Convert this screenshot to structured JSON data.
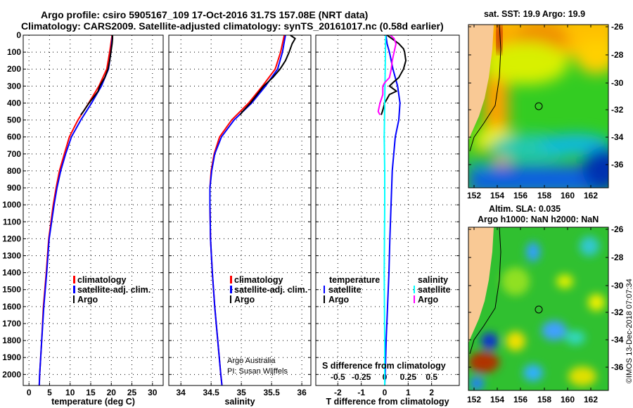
{
  "title_line1": "Argo profile: csiro 5905167_109 17-Oct-2016 31.7S 157.08E (NRT data)",
  "title_line2": "Climatology: CARS2009. Satellite-adjusted climatology: synTS_20161017.nc (0.58d earlier)",
  "credit": "Argo Australia",
  "pi": "PI: Susan Wijffels",
  "copyright": "©IMOS 13-Dec-2018 07:07:34",
  "colors": {
    "climatology": "#ff0000",
    "satellite": "#0000ff",
    "argo": "#000000",
    "sal_satellite": "#00ffff",
    "sal_argo": "#ff00ff"
  },
  "chart_data": [
    {
      "type": "line",
      "name": "temperature-profile",
      "xlabel": "temperature (deg C)",
      "ylabel": "",
      "xlim": [
        -1.4,
        32.6
      ],
      "ylim": [
        0,
        2065
      ],
      "xticks": [
        0,
        5,
        10,
        15,
        20,
        25,
        30
      ],
      "yticks": [
        0,
        100,
        200,
        300,
        400,
        500,
        600,
        700,
        800,
        900,
        1000,
        1100,
        1200,
        1300,
        1400,
        1500,
        1600,
        1700,
        1800,
        1900,
        2000
      ],
      "grid": true,
      "legend": {
        "position": "lower-center",
        "entries": [
          "climatology",
          "satellite-adj. clim.",
          "Argo"
        ]
      },
      "series": [
        {
          "name": "climatology",
          "color": "#ff0000",
          "depth": [
            0,
            100,
            200,
            300,
            400,
            500,
            600,
            700,
            800,
            900,
            1000,
            1200,
            1400,
            1600,
            1800,
            2000,
            2065
          ],
          "values": [
            20.2,
            19.6,
            18.9,
            17.0,
            14.5,
            11.9,
            9.8,
            8.6,
            7.4,
            6.6,
            5.9,
            4.8,
            4.2,
            3.5,
            3.1,
            2.6,
            2.5
          ]
        },
        {
          "name": "satellite-adj. clim.",
          "color": "#0000ff",
          "depth": [
            0,
            100,
            200,
            300,
            400,
            500,
            600,
            700,
            800,
            900,
            1000,
            1200,
            1400,
            1600,
            1800,
            2000,
            2065
          ],
          "values": [
            20.3,
            19.9,
            19.3,
            17.6,
            15.2,
            12.6,
            10.3,
            8.9,
            7.7,
            6.8,
            6.1,
            4.9,
            4.3,
            3.6,
            3.1,
            2.6,
            2.5
          ]
        },
        {
          "name": "Argo",
          "color": "#000000",
          "depth": [
            0,
            20,
            50,
            100,
            150,
            200,
            250,
            300,
            330,
            350,
            400,
            450,
            470
          ],
          "values": [
            20.3,
            20.3,
            20.2,
            19.9,
            19.6,
            19.2,
            18.4,
            17.2,
            16.8,
            16.2,
            14.6,
            13.2,
            12.6
          ]
        }
      ]
    },
    {
      "type": "line",
      "name": "salinity-profile",
      "xlabel": "salinity",
      "xlim": [
        33.8,
        36.15
      ],
      "ylim": [
        0,
        2065
      ],
      "xticks": [
        34,
        34.5,
        35,
        35.5,
        36
      ],
      "yticks": [
        0,
        100,
        200,
        300,
        400,
        500,
        600,
        700,
        800,
        900,
        1000,
        1100,
        1200,
        1300,
        1400,
        1500,
        1600,
        1700,
        1800,
        1900,
        2000
      ],
      "grid": true,
      "legend": {
        "position": "lower-center",
        "entries": [
          "climatology",
          "satellite-adj. clim.",
          "Argo"
        ]
      },
      "series": [
        {
          "name": "climatology",
          "color": "#ff0000",
          "depth": [
            0,
            100,
            200,
            300,
            400,
            500,
            600,
            700,
            800,
            900,
            1000,
            1200,
            1400,
            1600,
            1800,
            2000,
            2065
          ],
          "values": [
            35.71,
            35.65,
            35.56,
            35.35,
            35.12,
            34.84,
            34.64,
            34.55,
            34.5,
            34.48,
            34.48,
            34.49,
            34.52,
            34.56,
            34.61,
            34.66,
            34.68
          ]
        },
        {
          "name": "satellite-adj. clim.",
          "color": "#0000ff",
          "depth": [
            0,
            100,
            200,
            300,
            400,
            500,
            600,
            700,
            800,
            900,
            1000,
            1200,
            1400,
            1600,
            1800,
            2000,
            2065
          ],
          "values": [
            35.73,
            35.68,
            35.6,
            35.4,
            35.17,
            34.88,
            34.67,
            34.56,
            34.51,
            34.48,
            34.48,
            34.49,
            34.52,
            34.56,
            34.61,
            34.66,
            34.68
          ]
        },
        {
          "name": "Argo",
          "color": "#000000",
          "depth": [
            0,
            20,
            50,
            100,
            150,
            200,
            250,
            300,
            350,
            400,
            450,
            470
          ],
          "values": [
            35.81,
            35.89,
            35.84,
            35.79,
            35.73,
            35.64,
            35.52,
            35.37,
            35.26,
            35.15,
            35.02,
            34.98
          ]
        }
      ]
    },
    {
      "type": "line",
      "name": "difference-profile",
      "xlabel": "T difference from climatology",
      "x2label": "S difference from climatology",
      "xlim": [
        -2.94,
        3.18
      ],
      "x2lim": [
        -0.735,
        0.795
      ],
      "ylim": [
        0,
        2065
      ],
      "xticks": [
        -2,
        -1,
        0,
        1,
        2
      ],
      "x2ticks": [
        -0.5,
        -0.25,
        0,
        0.25,
        0.5
      ],
      "x2ticklabels": [
        "-0.5",
        "-0.25",
        "0",
        "0.25",
        "0.5"
      ],
      "yticks": [
        0,
        100,
        200,
        300,
        400,
        500,
        600,
        700,
        800,
        900,
        1000,
        1100,
        1200,
        1300,
        1400,
        1500,
        1600,
        1700,
        1800,
        1900,
        2000
      ],
      "grid": true,
      "legend": {
        "position": "lower-center",
        "temperature_header": "temperature",
        "salinity_header": "salinity",
        "entries": [
          "satellite",
          "Argo",
          "satellite",
          "Argo"
        ]
      },
      "series": [
        {
          "name": "temperature satellite",
          "axis": "T",
          "color": "#0000ff",
          "depth": [
            0,
            50,
            100,
            200,
            300,
            400,
            500,
            600,
            800,
            1000,
            1200,
            1400,
            1600,
            1800,
            2000,
            2065
          ],
          "values": [
            0.05,
            0.1,
            0.2,
            0.35,
            0.55,
            0.65,
            0.6,
            0.45,
            0.32,
            0.27,
            0.22,
            0.18,
            0.12,
            0.06,
            0.02,
            0.0
          ]
        },
        {
          "name": "temperature Argo",
          "axis": "T",
          "color": "#000000",
          "depth": [
            0,
            20,
            50,
            80,
            100,
            150,
            200,
            250,
            280,
            300,
            330,
            350,
            400,
            450,
            470
          ],
          "values": [
            0.1,
            0.3,
            0.6,
            0.8,
            0.85,
            0.9,
            0.8,
            0.6,
            0.35,
            0.2,
            0.5,
            0.2,
            0.0,
            -0.1,
            -0.15
          ]
        },
        {
          "name": "salinity satellite",
          "axis": "S",
          "color": "#00ffff",
          "depth": [
            0,
            200,
            400,
            600,
            800,
            1000,
            1400,
            1800,
            2065
          ],
          "values": [
            0.01,
            0.005,
            0.0,
            -0.005,
            0.0,
            0.0,
            -0.005,
            0.0,
            0.0
          ]
        },
        {
          "name": "salinity Argo",
          "axis": "S",
          "color": "#ff00ff",
          "depth": [
            0,
            20,
            50,
            100,
            150,
            200,
            250,
            280,
            300,
            350,
            400,
            450,
            470
          ],
          "values": [
            0.06,
            0.1,
            0.12,
            0.1,
            0.08,
            0.07,
            0.05,
            0.0,
            -0.02,
            -0.02,
            -0.05,
            -0.07,
            -0.05
          ]
        }
      ]
    }
  ],
  "maps": [
    {
      "name": "sst-map",
      "title": "sat. SST: 19.9 Argo: 19.9",
      "lon_ticks": [
        "152",
        "154",
        "156",
        "158",
        "160",
        "162"
      ],
      "lat_ticks": [
        "-26",
        "-28",
        "-30",
        "-32",
        "-34",
        "-36"
      ],
      "argo_position": {
        "lat": -31.7,
        "lon": 157.08
      }
    },
    {
      "name": "sla-map",
      "title1": "Altim. SLA: 0.035",
      "title2": "Argo h1000: NaN h2000: NaN",
      "lon_ticks": [
        "152",
        "154",
        "156",
        "158",
        "160",
        "162"
      ],
      "lat_ticks": [
        "-26",
        "-28",
        "-30",
        "-32",
        "-34",
        "-36"
      ],
      "argo_position": {
        "lat": -31.7,
        "lon": 157.08
      }
    }
  ]
}
